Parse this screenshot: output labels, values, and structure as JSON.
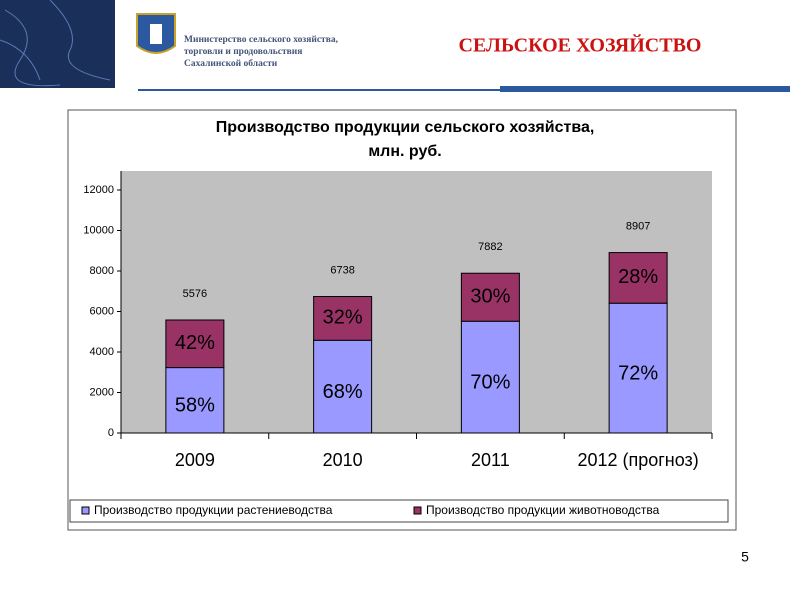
{
  "header": {
    "ministry_lines": [
      "Министерство сельского хозяйства,",
      "торговли и продовольствия",
      "Сахалинской области"
    ],
    "title": "СЕЛЬСКОЕ ХОЗЯЙСТВО"
  },
  "chart_data": {
    "type": "stacked_bar",
    "title_lines": [
      "Производство продукции сельского хозяйства,",
      "млн. руб."
    ],
    "categories": [
      "2009",
      "2010",
      "2011",
      "2012 (прогноз)"
    ],
    "series": [
      {
        "name": "Производство продукции растениеводства",
        "color": "#9999ff",
        "values": [
          3230,
          4580,
          5520,
          6410
        ],
        "segment_labels": [
          "58%",
          "68%",
          "70%",
          "72%"
        ]
      },
      {
        "name": "Производство продукции животноводства",
        "color": "#993366",
        "values": [
          2350,
          2160,
          2370,
          2500
        ],
        "segment_labels": [
          "42%",
          "32%",
          "30%",
          "28%"
        ]
      }
    ],
    "totals": [
      5576,
      6738,
      7882,
      8907
    ],
    "ylim": [
      0,
      12000
    ],
    "yticks": [
      0,
      2000,
      4000,
      6000,
      8000,
      10000,
      12000
    ],
    "plot_background": "#c0c0c0",
    "legend": "bottom"
  },
  "page_number": "5"
}
